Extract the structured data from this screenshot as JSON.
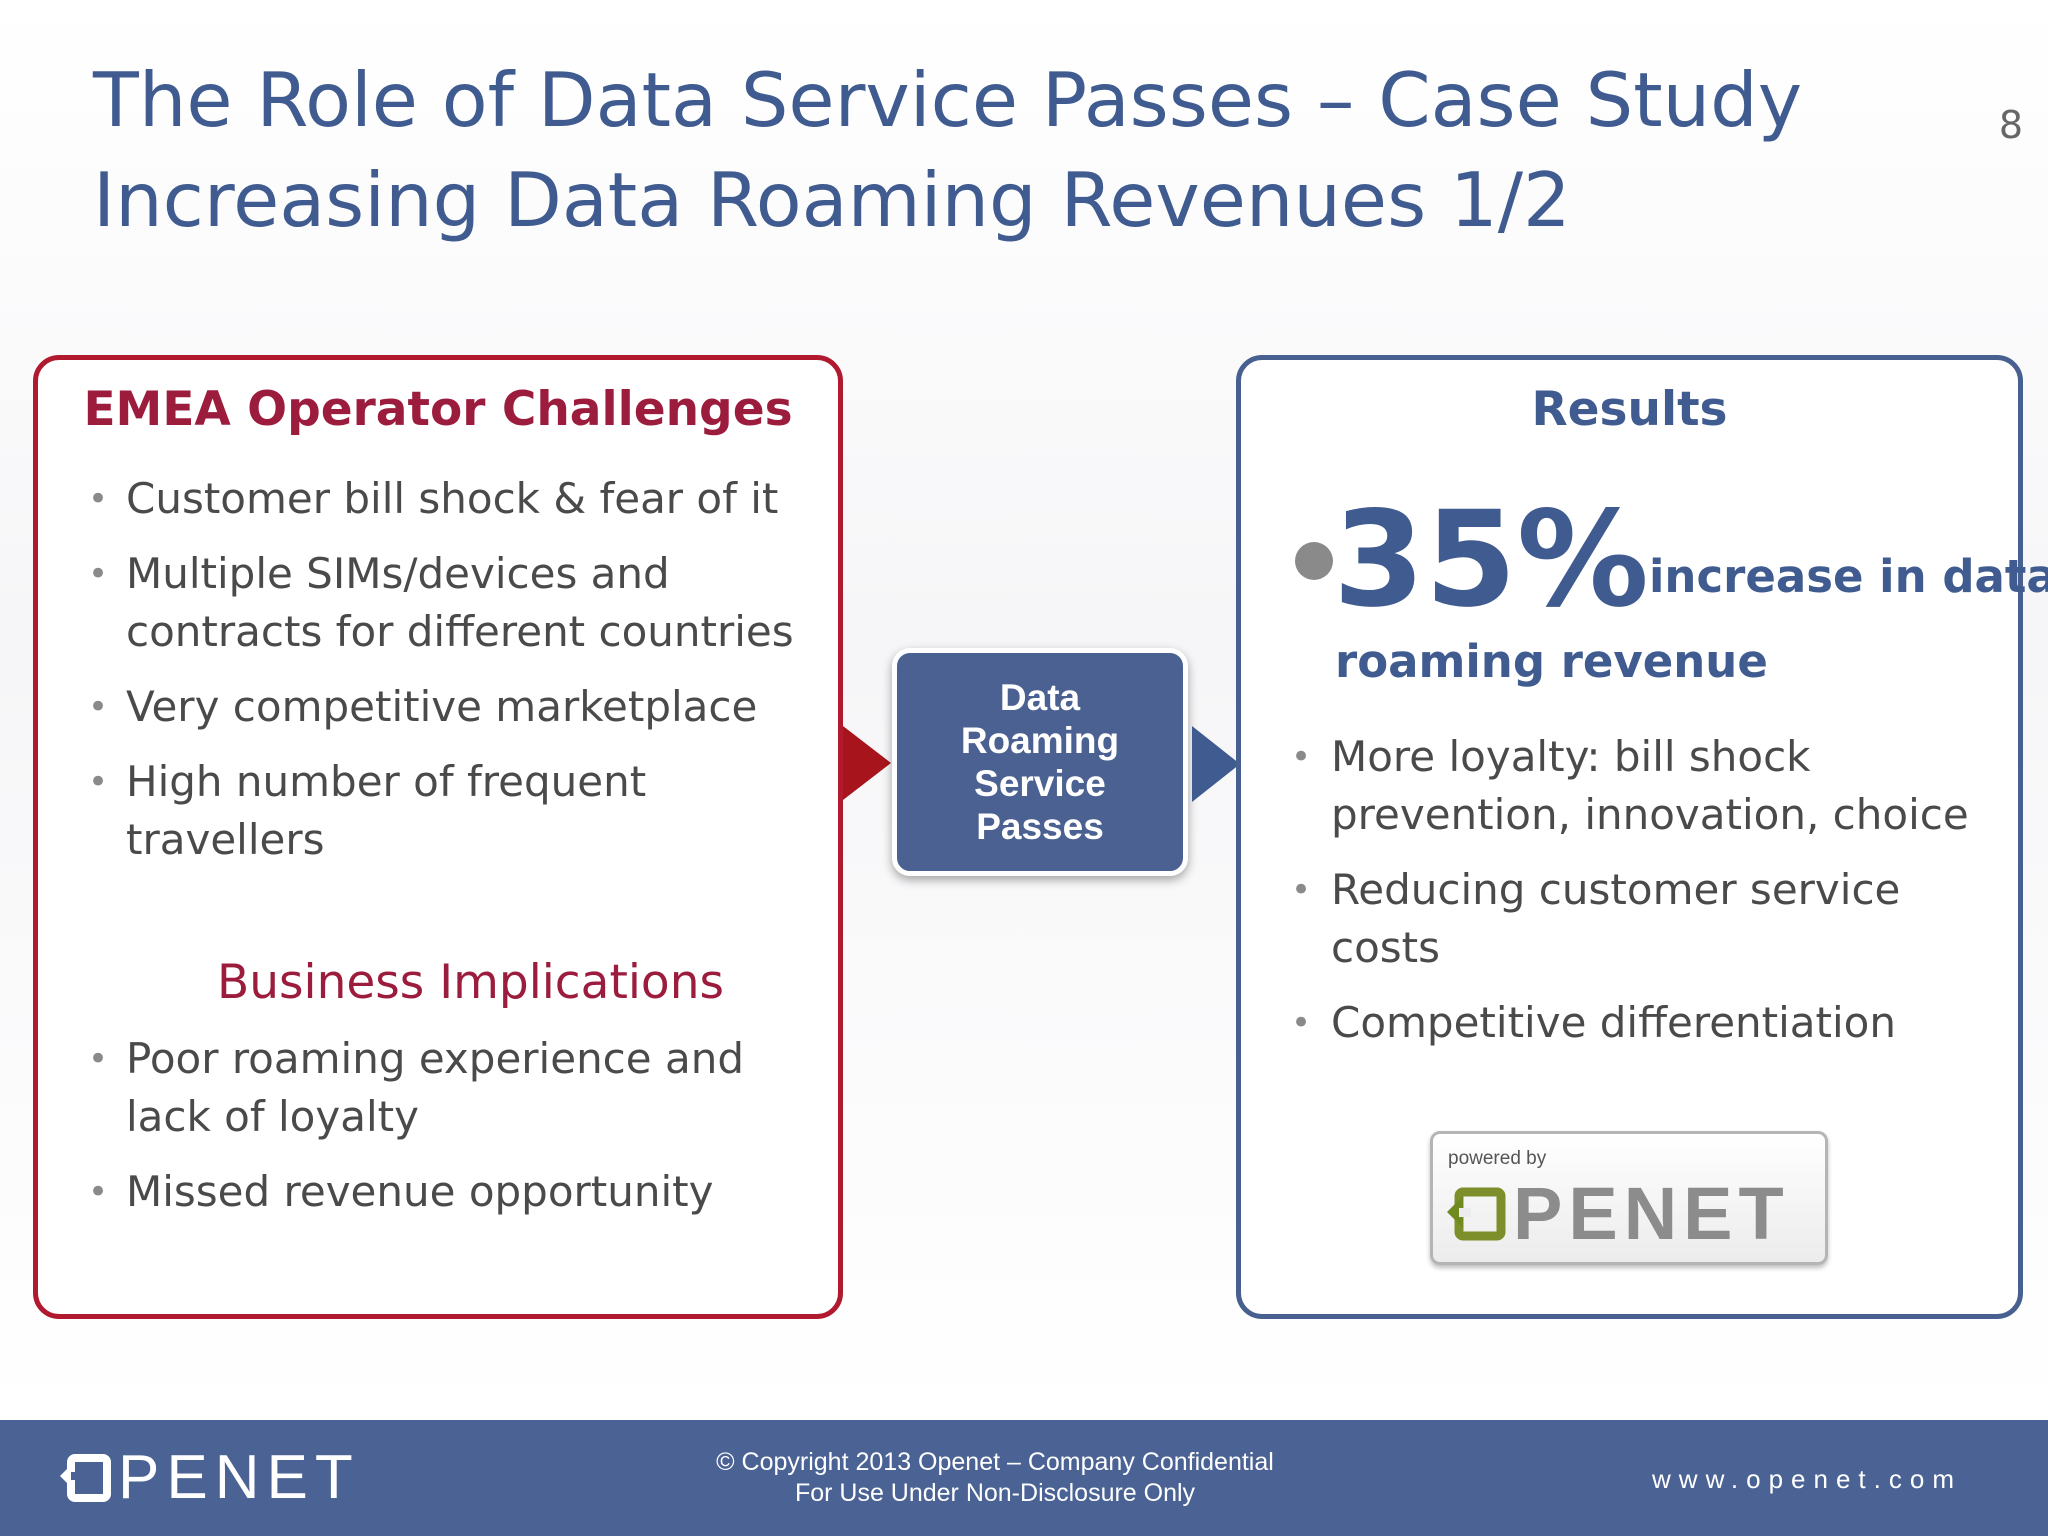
{
  "slide": {
    "title_line1": "The Role of Data Service Passes – Case Study",
    "title_line2": "Increasing Data Roaming Revenues 1/2",
    "page_number": "8"
  },
  "challenges_panel": {
    "heading": "EMEA Operator Challenges",
    "items": [
      "Customer bill shock & fear of it",
      "Multiple SIMs/devices and contracts for different countries",
      "Very competitive marketplace",
      "High number of frequent travellers"
    ],
    "implications_heading": "Business Implications",
    "implications": [
      "Poor roaming experience and lack of loyalty",
      "Missed revenue opportunity"
    ]
  },
  "center": {
    "line1": "Data",
    "line2": "Roaming",
    "line3": "Service",
    "line4": "Passes"
  },
  "results_panel": {
    "heading": "Results",
    "highlight_value": "35%",
    "highlight_text_1": "increase in data",
    "highlight_text_2": "roaming revenue",
    "items": [
      "More loyalty: bill shock prevention, innovation, choice",
      "Reducing customer service costs",
      "Competitive differentiation"
    ],
    "badge_caption": "powered by",
    "badge_brand": "PENET"
  },
  "footer": {
    "logo_word": "PENET",
    "copyright_line1": "© Copyright 2013 Openet – Company Confidential",
    "copyright_line2": "For Use Under Non-Disclosure Only",
    "url": "www.openet.com"
  },
  "colors": {
    "title_blue": "#3f5b8f",
    "challenge_red": "#b0192e",
    "footer_blue": "#4a6294",
    "badge_green": "#6f8a1e"
  }
}
